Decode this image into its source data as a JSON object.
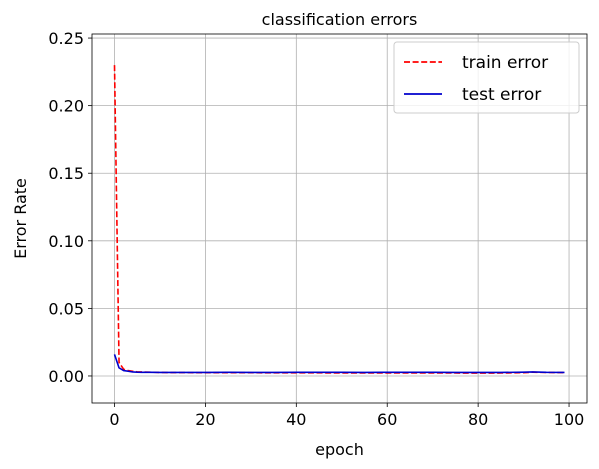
{
  "chart_data": {
    "type": "line",
    "title": "classification errors",
    "xlabel": "epoch",
    "ylabel": "Error Rate",
    "xlim": [
      -4.95,
      103.95
    ],
    "ylim": [
      -0.02,
      0.253
    ],
    "xticks": [
      0,
      20,
      40,
      60,
      80,
      100
    ],
    "xtick_labels": [
      "0",
      "20",
      "40",
      "60",
      "80",
      "100"
    ],
    "yticks": [
      0.0,
      0.05,
      0.1,
      0.15,
      0.2,
      0.25
    ],
    "ytick_labels": [
      "0.00",
      "0.05",
      "0.10",
      "0.15",
      "0.20",
      "0.25"
    ],
    "grid": true,
    "legend_position": "top-right",
    "series": [
      {
        "name": "train error",
        "color": "#ff0000",
        "linestyle": "dashed",
        "x": [
          0,
          1,
          2,
          3,
          4,
          5,
          6,
          8,
          10,
          12,
          15,
          20,
          25,
          30,
          35,
          40,
          45,
          50,
          55,
          60,
          65,
          70,
          75,
          80,
          85,
          90,
          92,
          95,
          99
        ],
        "y": [
          0.23,
          0.01,
          0.005,
          0.004,
          0.0035,
          0.003,
          0.003,
          0.0028,
          0.0026,
          0.0025,
          0.0025,
          0.0024,
          0.0024,
          0.0024,
          0.0023,
          0.0023,
          0.0023,
          0.0022,
          0.0022,
          0.0022,
          0.0022,
          0.0022,
          0.0022,
          0.0021,
          0.0022,
          0.0024,
          0.0028,
          0.0026,
          0.0025
        ]
      },
      {
        "name": "test error",
        "color": "#0000cd",
        "linestyle": "solid",
        "x": [
          0,
          1,
          2,
          3,
          4,
          5,
          6,
          8,
          10,
          12,
          15,
          20,
          25,
          30,
          35,
          40,
          45,
          50,
          55,
          60,
          65,
          70,
          75,
          80,
          85,
          90,
          92,
          95,
          99
        ],
        "y": [
          0.016,
          0.006,
          0.004,
          0.0035,
          0.003,
          0.0028,
          0.0027,
          0.0027,
          0.0026,
          0.0026,
          0.0026,
          0.0026,
          0.0027,
          0.0026,
          0.0026,
          0.0027,
          0.0027,
          0.0027,
          0.0026,
          0.0027,
          0.0027,
          0.0027,
          0.0026,
          0.0026,
          0.0026,
          0.0028,
          0.003,
          0.0027,
          0.0026
        ]
      }
    ]
  }
}
